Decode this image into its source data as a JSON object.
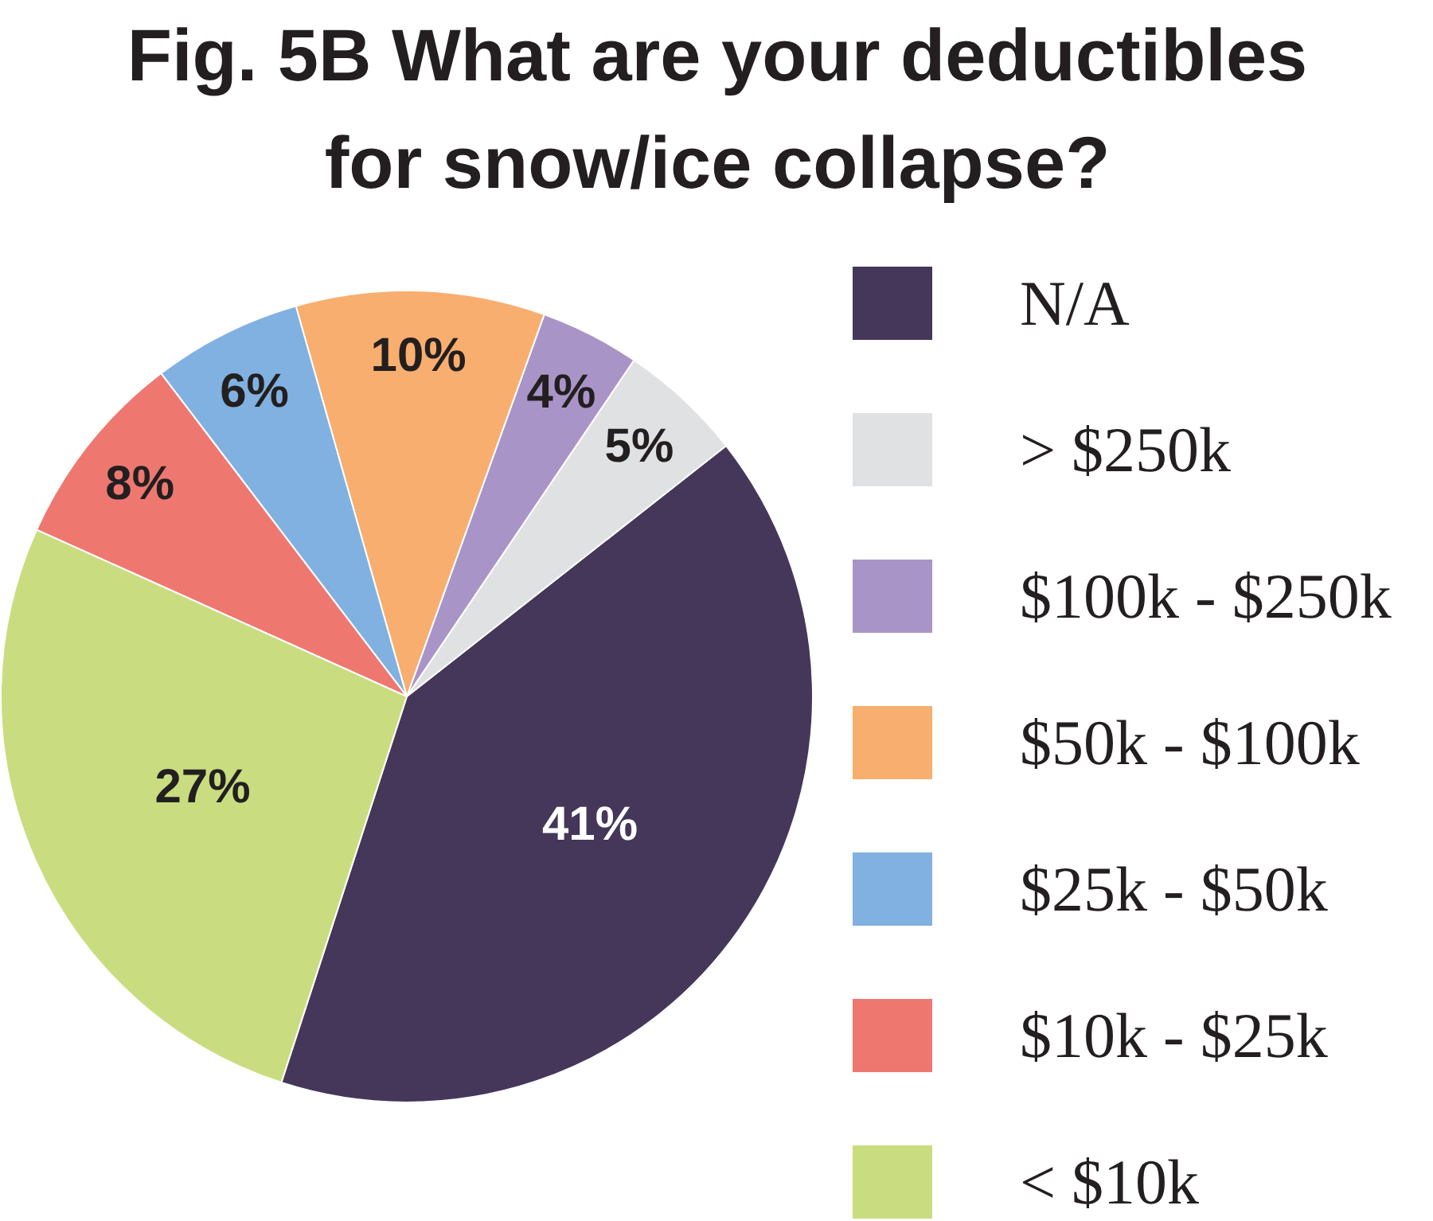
{
  "chart_data": {
    "type": "pie",
    "title": "Fig. 5B What are your deductibles for snow/ice collapse?",
    "categories": [
      "N/A",
      "> $250k",
      "$100k - $250k",
      "$50k - $100k",
      "$25k - $50k",
      "$10k - $25k",
      "< $10k"
    ],
    "values": [
      41,
      5,
      4,
      10,
      6,
      8,
      27
    ],
    "colors": [
      "#45375a",
      "#e0e1e3",
      "#a994c8",
      "#f8ae6e",
      "#80b1e0",
      "#ee7870",
      "#c9dd80"
    ],
    "value_labels": [
      "41%",
      "5%",
      "4%",
      "10%",
      "6%",
      "8%",
      "27%"
    ],
    "legend": "right"
  }
}
